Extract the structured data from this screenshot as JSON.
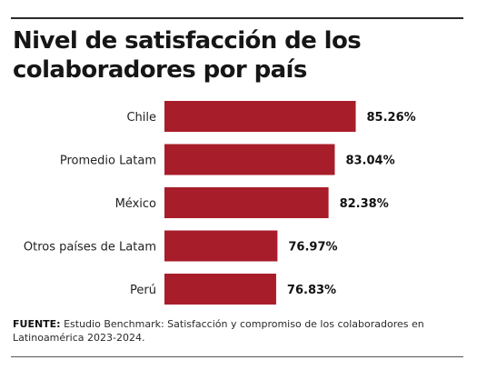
{
  "chart_data": {
    "type": "bar",
    "orientation": "horizontal",
    "title": "Nivel de satisfacción de los colaboradores por país",
    "categories": [
      "Chile",
      "Promedio Latam",
      "México",
      "Otros países de Latam",
      "Perú"
    ],
    "values": [
      85.26,
      83.04,
      82.38,
      76.97,
      76.83
    ],
    "value_labels": [
      "85.26%",
      "83.04%",
      "82.38%",
      "76.97%",
      "76.83%"
    ],
    "xlim": [
      65,
      88
    ],
    "grid": false,
    "colors": {
      "bar": "#a81d2a"
    }
  },
  "source": {
    "label": "FUENTE:",
    "text": "Estudio Benchmark: Satisfacción y compromiso de los colaboradores en Latinoamérica 2023-2024."
  }
}
